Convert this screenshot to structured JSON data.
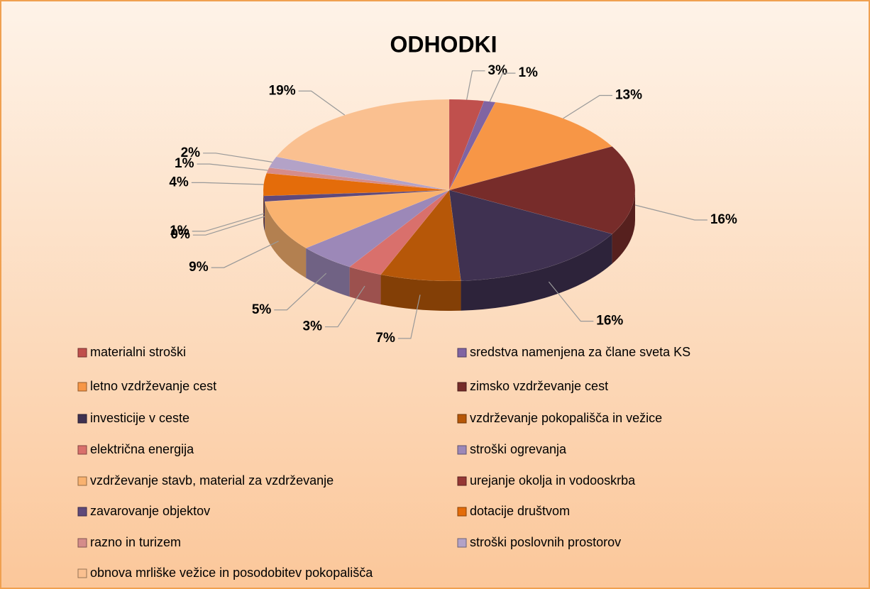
{
  "chart_data": {
    "type": "pie",
    "title": "ODHODKI",
    "categories": [
      "materialni stroški",
      "sredstva namenjena za člane sveta KS",
      "letno vzdrževanje cest",
      "zimsko vzdrževanje cest",
      "investicije v ceste",
      "vzdrževanje pokopališča in vežice",
      "električna energija",
      "stroški ogrevanja",
      "vzdrževanje stavb, material za vzdrževanje",
      "urejanje okolja in vodooskrba",
      "zavarovanje objektov",
      "dotacije društvom",
      "razno in turizem",
      "stroški poslovnih prostorov",
      "obnova mrliške vežice in posodobitev pokopališča"
    ],
    "values": [
      3,
      1,
      13,
      16,
      16,
      7,
      3,
      5,
      9,
      0,
      1,
      4,
      1,
      2,
      19
    ],
    "value_labels": [
      "3%",
      "1%",
      "13%",
      "16%",
      "16%",
      "7%",
      "3%",
      "5%",
      "9%",
      "0%",
      "1%",
      "4%",
      "1%",
      "2%",
      "19%"
    ],
    "colors": [
      "#c0504d",
      "#8064a2",
      "#f79646",
      "#772c2a",
      "#3f3151",
      "#b65708",
      "#d9706c",
      "#9c88b8",
      "#f9b26f",
      "#953735",
      "#5f497a",
      "#e46c0a",
      "#d58c8a",
      "#b3a2c7",
      "#fac090"
    ],
    "legend": "bottom"
  }
}
